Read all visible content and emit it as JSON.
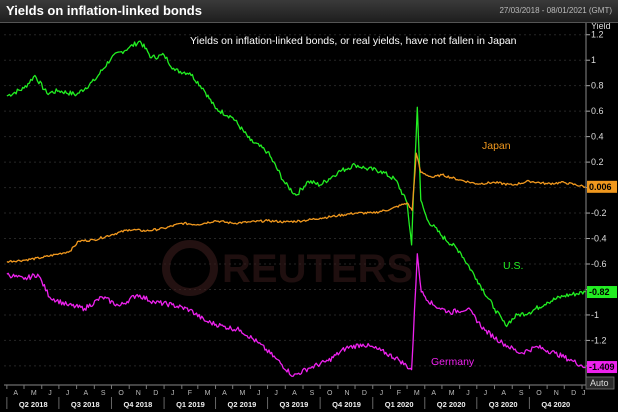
{
  "header": {
    "title": "Yields on inflation-linked bonds",
    "date_range": "27/03/2018 - 08/01/2021 (GMT)"
  },
  "chart_data": {
    "type": "line",
    "subtitle": "Yields on inflation-linked bonds, or real yields, have not fallen in Japan",
    "ylabel": "Yield",
    "ylim": [
      -1.55,
      1.3
    ],
    "y_ticks": [
      "1.2",
      "1",
      "0.8",
      "0.6",
      "0.4",
      "0.2",
      "0",
      "-0.2",
      "-0.4",
      "-0.6",
      "-0.8",
      "-1",
      "-1.2",
      "-1.4"
    ],
    "xlim": [
      "2018-03-27",
      "2021-01-08"
    ],
    "month_labels": [
      "A",
      "M",
      "J",
      "J",
      "A",
      "S",
      "O",
      "N",
      "D",
      "J",
      "F",
      "M",
      "A",
      "M",
      "J",
      "J",
      "A",
      "S",
      "O",
      "N",
      "D",
      "J",
      "F",
      "M",
      "A",
      "M",
      "J",
      "J",
      "A",
      "S",
      "O",
      "N",
      "D",
      "J"
    ],
    "quarter_labels": [
      "Q2 2018",
      "Q3 2018",
      "Q4 2018",
      "Q1 2019",
      "Q2 2019",
      "Q3 2019",
      "Q4 2019",
      "Q1 2020",
      "Q2 2020",
      "Q3 2020",
      "Q4 2020"
    ],
    "auto_label": "Auto",
    "watermark": "REUTERS",
    "series": [
      {
        "name": "U.S.",
        "color": "#22ee22",
        "last_value": "-0.82",
        "points": [
          [
            "2018-04-01",
            0.72
          ],
          [
            "2018-05-01",
            0.78
          ],
          [
            "2018-05-20",
            0.88
          ],
          [
            "2018-06-10",
            0.74
          ],
          [
            "2018-07-01",
            0.76
          ],
          [
            "2018-08-01",
            0.73
          ],
          [
            "2018-09-01",
            0.84
          ],
          [
            "2018-10-01",
            1.02
          ],
          [
            "2018-11-01",
            1.1
          ],
          [
            "2018-11-20",
            1.15
          ],
          [
            "2018-12-10",
            1.02
          ],
          [
            "2019-01-01",
            1.04
          ],
          [
            "2019-01-20",
            0.92
          ],
          [
            "2019-02-15",
            0.9
          ],
          [
            "2019-03-10",
            0.78
          ],
          [
            "2019-04-01",
            0.62
          ],
          [
            "2019-05-01",
            0.55
          ],
          [
            "2019-06-01",
            0.37
          ],
          [
            "2019-07-01",
            0.28
          ],
          [
            "2019-08-01",
            0.03
          ],
          [
            "2019-08-20",
            -0.06
          ],
          [
            "2019-09-10",
            0.05
          ],
          [
            "2019-10-01",
            0.02
          ],
          [
            "2019-11-01",
            0.12
          ],
          [
            "2019-12-01",
            0.18
          ],
          [
            "2019-12-20",
            0.15
          ],
          [
            "2020-01-15",
            0.13
          ],
          [
            "2020-02-10",
            0.06
          ],
          [
            "2020-03-01",
            -0.12
          ],
          [
            "2020-03-09",
            -0.45
          ],
          [
            "2020-03-12",
            -0.08
          ],
          [
            "2020-03-19",
            0.63
          ],
          [
            "2020-03-25",
            -0.1
          ],
          [
            "2020-04-05",
            -0.25
          ],
          [
            "2020-05-01",
            -0.38
          ],
          [
            "2020-06-01",
            -0.5
          ],
          [
            "2020-07-01",
            -0.72
          ],
          [
            "2020-08-01",
            -0.95
          ],
          [
            "2020-08-20",
            -1.08
          ],
          [
            "2020-09-10",
            -1.0
          ],
          [
            "2020-10-01",
            -0.98
          ],
          [
            "2020-11-01",
            -0.9
          ],
          [
            "2020-12-01",
            -0.85
          ],
          [
            "2021-01-07",
            -0.82
          ]
        ]
      },
      {
        "name": "Japan",
        "color": "#f0981e",
        "last_value": "0.006",
        "points": [
          [
            "2018-04-01",
            -0.58
          ],
          [
            "2018-05-01",
            -0.57
          ],
          [
            "2018-06-01",
            -0.55
          ],
          [
            "2018-07-01",
            -0.52
          ],
          [
            "2018-07-20",
            -0.5
          ],
          [
            "2018-08-05",
            -0.42
          ],
          [
            "2018-09-01",
            -0.41
          ],
          [
            "2018-10-01",
            -0.37
          ],
          [
            "2018-11-01",
            -0.33
          ],
          [
            "2018-12-01",
            -0.34
          ],
          [
            "2019-01-01",
            -0.32
          ],
          [
            "2019-02-01",
            -0.28
          ],
          [
            "2019-03-01",
            -0.29
          ],
          [
            "2019-04-01",
            -0.26
          ],
          [
            "2019-05-01",
            -0.28
          ],
          [
            "2019-06-01",
            -0.27
          ],
          [
            "2019-07-01",
            -0.26
          ],
          [
            "2019-08-01",
            -0.27
          ],
          [
            "2019-09-01",
            -0.26
          ],
          [
            "2019-10-01",
            -0.24
          ],
          [
            "2019-11-01",
            -0.22
          ],
          [
            "2019-12-01",
            -0.2
          ],
          [
            "2020-01-01",
            -0.2
          ],
          [
            "2020-02-01",
            -0.17
          ],
          [
            "2020-03-01",
            -0.12
          ],
          [
            "2020-03-10",
            -0.18
          ],
          [
            "2020-03-17",
            0.27
          ],
          [
            "2020-03-25",
            0.12
          ],
          [
            "2020-04-15",
            0.08
          ],
          [
            "2020-05-01",
            0.1
          ],
          [
            "2020-06-01",
            0.06
          ],
          [
            "2020-07-01",
            0.03
          ],
          [
            "2020-08-01",
            0.04
          ],
          [
            "2020-09-01",
            0.02
          ],
          [
            "2020-10-01",
            0.05
          ],
          [
            "2020-11-01",
            0.03
          ],
          [
            "2020-12-01",
            0.04
          ],
          [
            "2021-01-07",
            0.006
          ]
        ]
      },
      {
        "name": "Germany",
        "color": "#ee22ee",
        "last_value": "-1.409",
        "points": [
          [
            "2018-04-01",
            -0.68
          ],
          [
            "2018-05-01",
            -0.72
          ],
          [
            "2018-05-25",
            -0.68
          ],
          [
            "2018-06-15",
            -0.86
          ],
          [
            "2018-07-15",
            -0.92
          ],
          [
            "2018-08-15",
            -0.95
          ],
          [
            "2018-09-15",
            -0.86
          ],
          [
            "2018-10-15",
            -0.93
          ],
          [
            "2018-11-15",
            -0.84
          ],
          [
            "2018-12-15",
            -0.9
          ],
          [
            "2019-01-15",
            -0.92
          ],
          [
            "2019-02-15",
            -0.96
          ],
          [
            "2019-03-15",
            -1.05
          ],
          [
            "2019-04-15",
            -1.09
          ],
          [
            "2019-05-15",
            -1.12
          ],
          [
            "2019-06-15",
            -1.22
          ],
          [
            "2019-07-15",
            -1.34
          ],
          [
            "2019-08-15",
            -1.48
          ],
          [
            "2019-09-10",
            -1.42
          ],
          [
            "2019-10-15",
            -1.36
          ],
          [
            "2019-11-15",
            -1.26
          ],
          [
            "2019-12-15",
            -1.23
          ],
          [
            "2020-01-15",
            -1.28
          ],
          [
            "2020-02-15",
            -1.35
          ],
          [
            "2020-03-09",
            -1.43
          ],
          [
            "2020-03-19",
            -0.52
          ],
          [
            "2020-03-26",
            -0.82
          ],
          [
            "2020-04-15",
            -0.92
          ],
          [
            "2020-05-15",
            -0.98
          ],
          [
            "2020-06-15",
            -0.95
          ],
          [
            "2020-07-15",
            -1.12
          ],
          [
            "2020-08-15",
            -1.22
          ],
          [
            "2020-09-15",
            -1.3
          ],
          [
            "2020-10-15",
            -1.25
          ],
          [
            "2020-11-15",
            -1.3
          ],
          [
            "2020-12-15",
            -1.36
          ],
          [
            "2021-01-07",
            -1.409
          ]
        ]
      }
    ]
  }
}
